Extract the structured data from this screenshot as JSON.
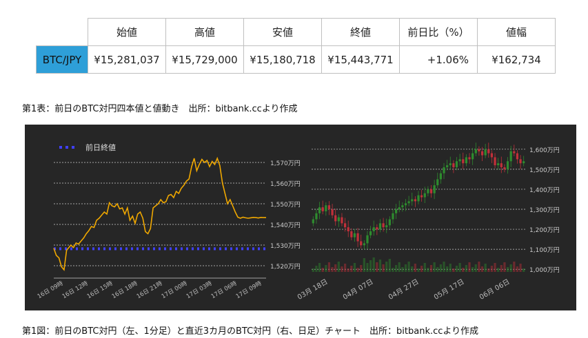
{
  "table": {
    "headers": [
      "始値",
      "高値",
      "安値",
      "終値",
      "前日比（%）",
      "値幅"
    ],
    "pair": "BTC/JPY",
    "values": [
      "¥15,281,037",
      "¥15,729,000",
      "¥15,180,718",
      "¥15,443,771",
      "+1.06%",
      "¥162,734"
    ],
    "caption": "第1表：前日のBTC対円四本値と値動き　出所：bitbank.ccより作成"
  },
  "figure_caption": "第1図：前日のBTC対円（左、1分足）と直近3カ月のBTC対円（右、日足）チャート　出所：bitbank.ccより作成",
  "colors": {
    "panel": "#262626",
    "line": "#f0a800",
    "prev_close": "#4040ff",
    "up": "#2e8b2e",
    "down": "#c0303a",
    "pair_cell": "#2e9fd8"
  },
  "chart_data": [
    {
      "type": "line",
      "title": "",
      "legend": "前日終値",
      "legend_position": "top-left",
      "unit": "万円",
      "ylim": [
        1515,
        1575
      ],
      "y_ticks": [
        1520,
        1530,
        1540,
        1550,
        1560,
        1570
      ],
      "y_tick_labels": [
        "1,520万円",
        "1,530万円",
        "1,540万円",
        "1,550万円",
        "1,560万円",
        "1,570万円"
      ],
      "x_tick_labels": [
        "16日 09時",
        "16日 12時",
        "16日 15時",
        "16日 18時",
        "16日 21時",
        "17日 00時",
        "17日 03時",
        "17日 06時",
        "17日 09時"
      ],
      "prev_close": 1528.2,
      "series": [
        {
          "x": [
            0,
            0.3,
            0.6,
            0.9,
            1.2,
            1.5,
            1.8,
            2.0,
            2.3,
            2.6,
            2.9,
            3.2,
            3.5,
            3.8,
            4.1,
            4.4,
            4.7,
            5.0,
            5.3,
            5.6,
            5.9,
            6.2,
            6.5,
            6.8,
            7.1,
            7.4,
            7.7,
            8.0,
            8.3,
            8.6,
            8.9,
            9.2,
            9.5,
            9.8,
            10.1,
            10.4,
            10.7,
            11.0,
            11.3,
            11.6,
            11.9,
            12.2,
            12.5,
            12.8,
            13.1,
            13.4,
            13.7,
            14.0,
            14.3,
            14.6,
            14.9,
            15.2,
            15.5,
            15.8,
            16.1,
            16.4,
            16.7,
            17.0,
            17.3,
            17.6,
            17.9,
            18.2,
            18.5,
            18.8,
            19.1,
            19.4,
            19.7,
            20.0,
            20.3,
            20.6,
            20.9,
            21.2,
            21.5,
            21.8,
            22.1,
            22.4,
            22.7,
            23.0,
            23.3,
            23.6,
            23.9,
            24.2,
            24.5,
            24.8
          ],
          "values": [
            1528.5,
            1525.0,
            1523.8,
            1519.5,
            1518.0,
            1527.5,
            1529.0,
            1530.0,
            1528.8,
            1531.0,
            1530.5,
            1532.0,
            1533.5,
            1535.5,
            1537.0,
            1539.0,
            1538.5,
            1542.0,
            1543.0,
            1544.5,
            1546.0,
            1545.0,
            1550.5,
            1549.0,
            1548.5,
            1550.0,
            1547.5,
            1548.0,
            1545.0,
            1548.0,
            1542.0,
            1544.0,
            1540.5,
            1545.0,
            1546.0,
            1543.0,
            1536.5,
            1535.5,
            1538.0,
            1548.0,
            1549.0,
            1550.0,
            1552.0,
            1550.5,
            1551.0,
            1554.0,
            1554.5,
            1553.0,
            1556.0,
            1555.0,
            1557.5,
            1559.0,
            1561.0,
            1562.0,
            1568.0,
            1572.0,
            1566.0,
            1569.0,
            1571.5,
            1570.0,
            1571.0,
            1568.0,
            1570.5,
            1569.0,
            1572.0,
            1568.5,
            1560.0,
            1555.0,
            1550.0,
            1552.0,
            1549.0,
            1546.0,
            1543.5,
            1543.0,
            1543.5,
            1543.2,
            1543.0,
            1543.2,
            1543.4,
            1543.3,
            1543.1,
            1543.4,
            1543.3,
            1543.3
          ]
        }
      ]
    },
    {
      "type": "candlestick",
      "title": "",
      "unit": "万円",
      "ylim": [
        980,
        1620
      ],
      "y_ticks": [
        1000,
        1100,
        1200,
        1300,
        1400,
        1500,
        1600
      ],
      "y_tick_labels": [
        "1,000万円",
        "1,100万円",
        "1,200万円",
        "1,300万円",
        "1,400万円",
        "1,500万円",
        "1,600万円"
      ],
      "x_tick_labels": [
        "03月 18日",
        "04月 07日",
        "04月 27日",
        "05月 17日",
        "06月 06日"
      ],
      "close": [
        1250,
        1280,
        1310,
        1290,
        1320,
        1300,
        1270,
        1240,
        1260,
        1230,
        1210,
        1190,
        1160,
        1180,
        1140,
        1120,
        1130,
        1170,
        1190,
        1210,
        1200,
        1230,
        1210,
        1220,
        1250,
        1280,
        1300,
        1310,
        1320,
        1330,
        1340,
        1350,
        1340,
        1370,
        1360,
        1380,
        1400,
        1380,
        1420,
        1450,
        1480,
        1510,
        1520,
        1530,
        1510,
        1540,
        1550,
        1530,
        1560,
        1550,
        1580,
        1600,
        1590,
        1570,
        1600,
        1580,
        1560,
        1520,
        1530,
        1510,
        1500,
        1540,
        1590,
        1580,
        1550,
        1530,
        1540
      ]
    }
  ]
}
